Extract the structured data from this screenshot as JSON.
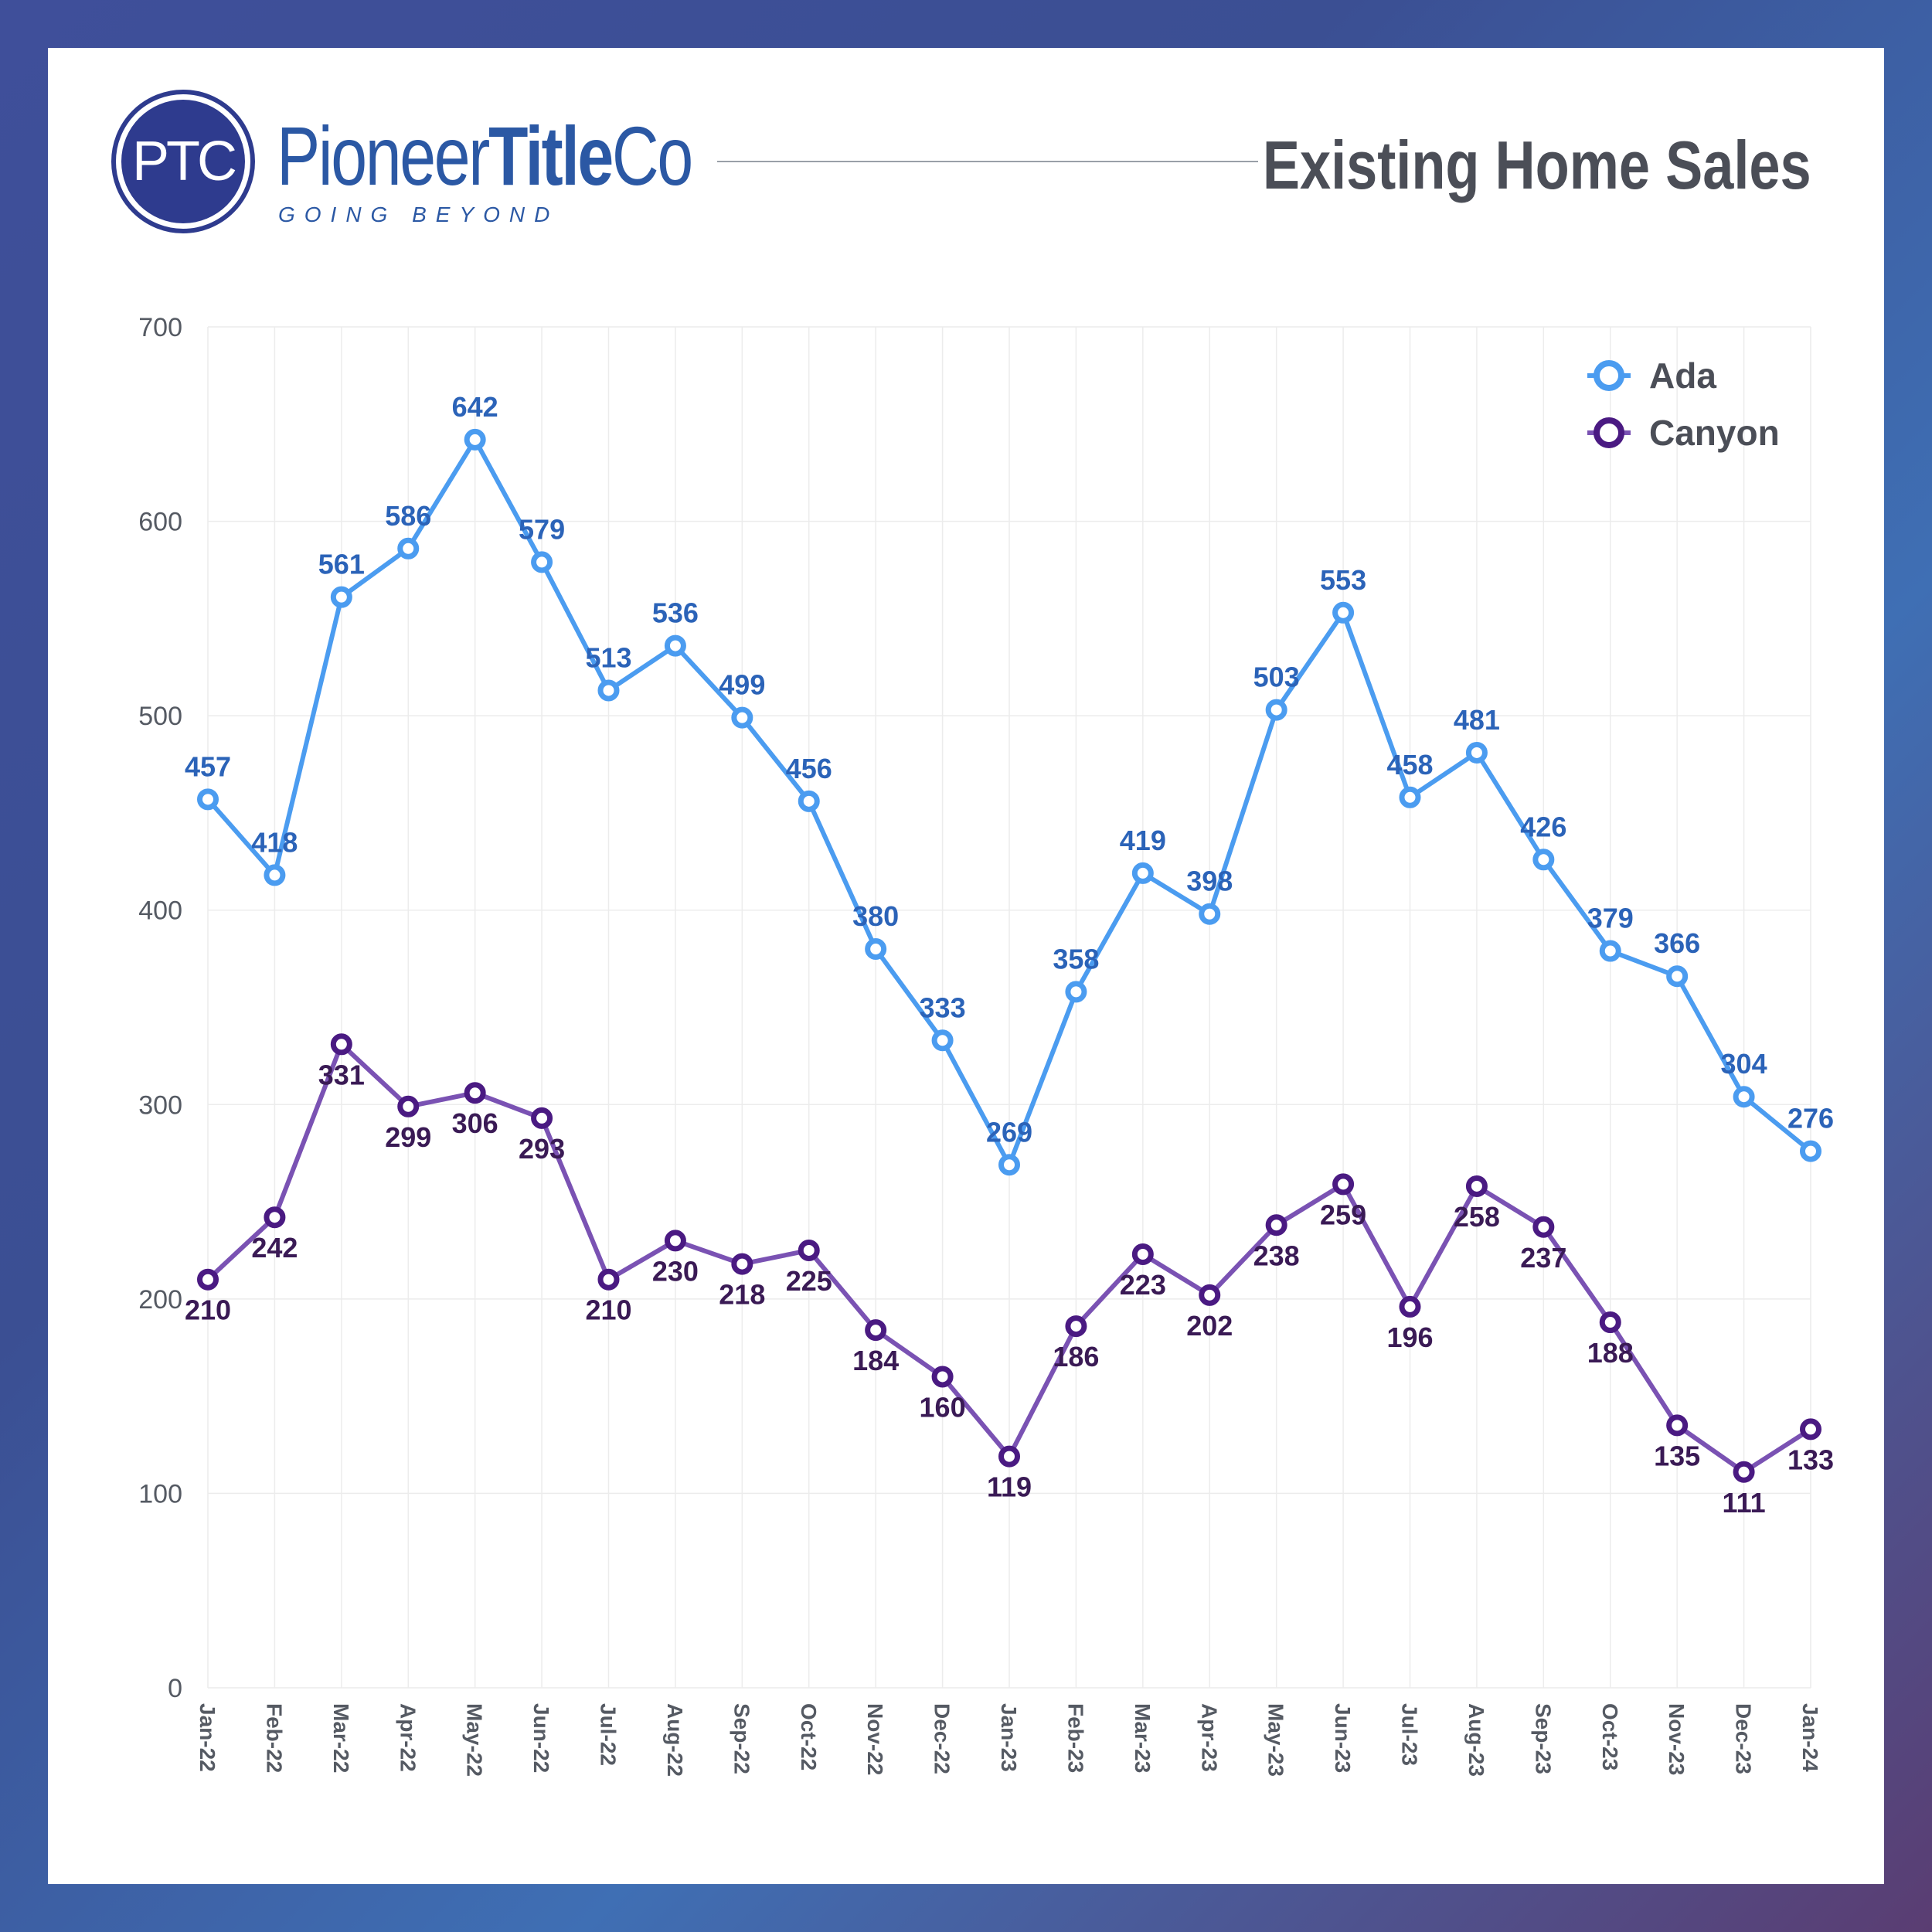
{
  "header": {
    "logo_monogram": "PTC",
    "brand_regular_1": "Pioneer",
    "brand_bold": "Title",
    "brand_regular_2": "Co",
    "tagline": "GOING BEYOND",
    "title": "Existing Home Sales"
  },
  "colors": {
    "ada": "#4b9cf0",
    "canyon": "#7a52b3",
    "canyon_marker": "#4a1a82",
    "brand": "#2b58a4"
  },
  "chart_data": {
    "type": "line",
    "title": "Existing Home Sales",
    "xlabel": "",
    "ylabel": "",
    "ylim": [
      0,
      700
    ],
    "yticks": [
      0,
      100,
      200,
      300,
      400,
      500,
      600,
      700
    ],
    "grid": true,
    "legend_position": "top-right",
    "categories": [
      "Jan-22",
      "Feb-22",
      "Mar-22",
      "Apr-22",
      "May-22",
      "Jun-22",
      "Jul-22",
      "Aug-22",
      "Sep-22",
      "Oct-22",
      "Nov-22",
      "Dec-22",
      "Jan-23",
      "Feb-23",
      "Mar-23",
      "Apr-23",
      "May-23",
      "Jun-23",
      "Jul-23",
      "Aug-23",
      "Sep-23",
      "Oct-23",
      "Nov-23",
      "Dec-23",
      "Jan-24"
    ],
    "series": [
      {
        "name": "Ada",
        "values": [
          457,
          418,
          561,
          586,
          642,
          579,
          513,
          536,
          499,
          456,
          380,
          333,
          269,
          358,
          419,
          398,
          503,
          553,
          458,
          481,
          426,
          379,
          366,
          304,
          276
        ]
      },
      {
        "name": "Canyon",
        "values": [
          210,
          242,
          331,
          299,
          306,
          293,
          210,
          230,
          218,
          225,
          184,
          160,
          119,
          186,
          223,
          202,
          238,
          259,
          196,
          258,
          237,
          188,
          135,
          111,
          133
        ]
      }
    ]
  }
}
